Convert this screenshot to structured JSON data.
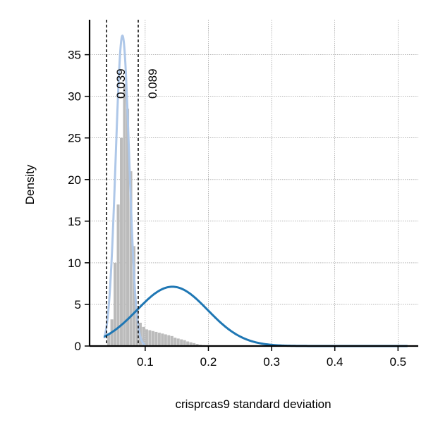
{
  "chart_data": {
    "type": "histogram",
    "title": "",
    "xlabel": "crisprcas9 standard deviation",
    "ylabel": "Density",
    "xlim": [
      0.012,
      0.532
    ],
    "ylim": [
      0,
      39.2
    ],
    "xticks": [
      0.1,
      0.2,
      0.3,
      0.4,
      0.5
    ],
    "xtick_labels": [
      "0.1",
      "0.2",
      "0.3",
      "0.4",
      "0.5"
    ],
    "yticks": [
      0,
      5,
      10,
      15,
      20,
      25,
      30,
      35
    ],
    "ytick_labels": [
      "0",
      "5",
      "10",
      "15",
      "20",
      "25",
      "30",
      "35"
    ],
    "grid": true,
    "legend": "none",
    "histogram": {
      "bin_width": 0.005,
      "bin_start": 0.04,
      "densities": [
        1.5,
        3.2,
        10.0,
        17.0,
        25.0,
        31.5,
        28.5,
        21.0,
        12.0,
        4.5,
        2.8,
        2.3,
        2.0,
        1.9,
        1.8,
        1.7,
        1.6,
        1.5,
        1.4,
        1.3,
        1.2,
        1.0,
        0.9,
        0.8,
        0.7,
        0.55,
        0.45,
        0.35,
        0.25,
        0.15,
        0.1,
        0.05
      ],
      "color": "#bbbbbb"
    },
    "series": [
      {
        "curve": "normal",
        "mean": 0.064,
        "sd": 0.0107,
        "x_range": [
          0.035,
          0.1
        ],
        "color": "#aec7e8"
      },
      {
        "curve": "normal",
        "mean": 0.143,
        "sd": 0.056,
        "x_range": [
          0.035,
          0.515
        ],
        "color": "#1f77b4"
      }
    ],
    "vlines": [
      {
        "x": 0.039,
        "label": "0.039",
        "style": "dashed",
        "color": "#000000"
      },
      {
        "x": 0.089,
        "label": "0.089",
        "style": "dashed",
        "color": "#000000"
      }
    ]
  }
}
